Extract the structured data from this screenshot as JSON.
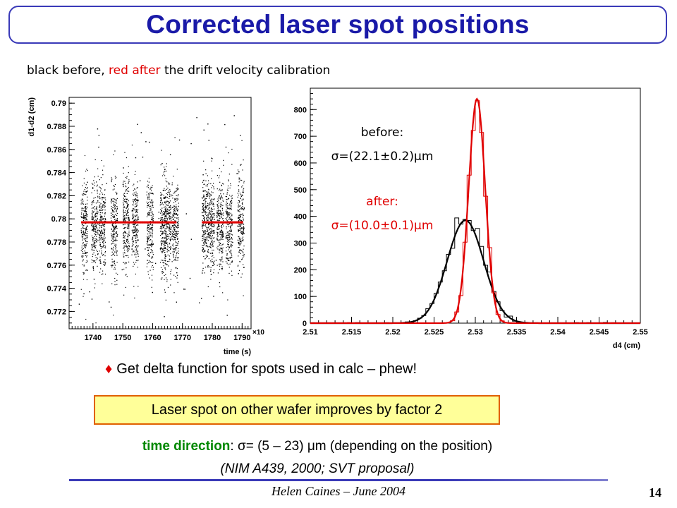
{
  "title": "Corrected laser spot positions",
  "subtitle": {
    "part1": "black before, ",
    "part2": "red after",
    "part3": " the drift velocity calibration"
  },
  "colors": {
    "accent": "#1a1aa8",
    "before": "#000000",
    "after": "#e00000",
    "callout_bg": "#ffff99",
    "callout_border": "#e06000",
    "green": "#008800"
  },
  "chart_data": [
    {
      "type": "scatter",
      "title": "",
      "xlabel": "time (s)",
      "ylabel": "d1-d2 (cm)",
      "x_exponent": "×10²",
      "xlim": [
        1732,
        1793
      ],
      "ylim": [
        0.7705,
        0.7905
      ],
      "xticks": [
        1740,
        1750,
        1760,
        1770,
        1780,
        1790
      ],
      "yticks": [
        0.772,
        0.774,
        0.776,
        0.778,
        0.78,
        0.782,
        0.784,
        0.786,
        0.788,
        0.79
      ],
      "ytick_labels": [
        "0.772",
        "0.774",
        "0.776",
        "0.778",
        "0.78",
        "0.782",
        "0.784",
        "0.786",
        "0.788",
        "0.79"
      ],
      "clusters_x": [
        1737,
        1740.5,
        1743,
        1747,
        1751,
        1754,
        1759,
        1763.5,
        1765,
        1767.5,
        1777.5,
        1779.5,
        1782.5,
        1785.5,
        1789.5
      ],
      "before_mean": 0.7795,
      "before_spread": 0.0048,
      "after_mean": 0.7797,
      "after_x_ranges": [
        [
          1736,
          1767.5
        ],
        [
          1776.5,
          1790
        ]
      ],
      "series": [
        {
          "name": "black before"
        },
        {
          "name": "red after"
        }
      ]
    },
    {
      "type": "line",
      "title": "",
      "xlabel": "d4 (cm)",
      "ylabel": "",
      "xlim": [
        2.51,
        2.55
      ],
      "ylim": [
        0,
        880
      ],
      "xticks": [
        2.51,
        2.515,
        2.52,
        2.525,
        2.53,
        2.535,
        2.54,
        2.545,
        2.55
      ],
      "xtick_labels": [
        "2.51",
        "2.515",
        "2.52",
        "2.525",
        "2.53",
        "2.535",
        "2.54",
        "2.545",
        "2.55"
      ],
      "yticks": [
        0,
        100,
        200,
        300,
        400,
        500,
        600,
        700,
        800
      ],
      "series": [
        {
          "name": "before",
          "mean": 2.5288,
          "sigma": 0.00221,
          "peak": 385
        },
        {
          "name": "after",
          "mean": 2.5302,
          "sigma": 0.001,
          "peak": 840
        }
      ],
      "annotations": {
        "before_label": "before:",
        "before_value": "σ=(22.1±0.2)μm",
        "after_label": "after:",
        "after_value": "σ=(10.0±0.1)μm"
      }
    }
  ],
  "bullet": "Get delta function for spots used in calc – phew!",
  "bullet_symbol": "♦",
  "callout": "Laser spot on other wafer improves by factor 2",
  "note": {
    "label": "time direction",
    "text": ": σ= (5 – 23) μm (depending on the position)",
    "reference": "(NIM A439, 2000; SVT proposal)"
  },
  "footer": "Helen Caines – June 2004",
  "page_number": "14"
}
